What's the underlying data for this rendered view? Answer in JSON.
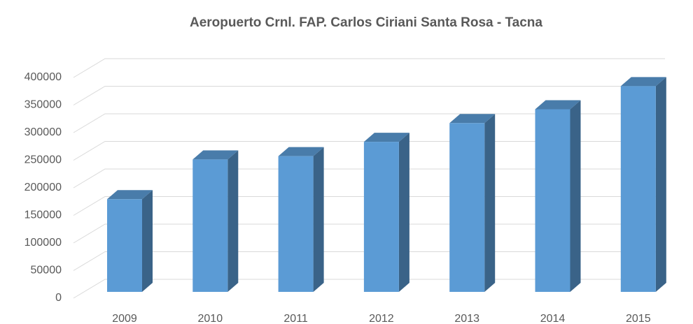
{
  "chart_data": {
    "type": "bar3d",
    "title": "Aeropuerto Crnl. FAP. Carlos Ciriani Santa Rosa - Tacna",
    "categories": [
      "2009",
      "2010",
      "2011",
      "2012",
      "2013",
      "2014",
      "2015"
    ],
    "values": [
      168000,
      240000,
      246000,
      272000,
      306000,
      331000,
      373000
    ],
    "color": "#5b9bd5",
    "ylim": [
      0,
      400000
    ],
    "yticks": [
      0,
      50000,
      100000,
      150000,
      200000,
      250000,
      300000,
      350000,
      400000
    ],
    "grid": true
  }
}
